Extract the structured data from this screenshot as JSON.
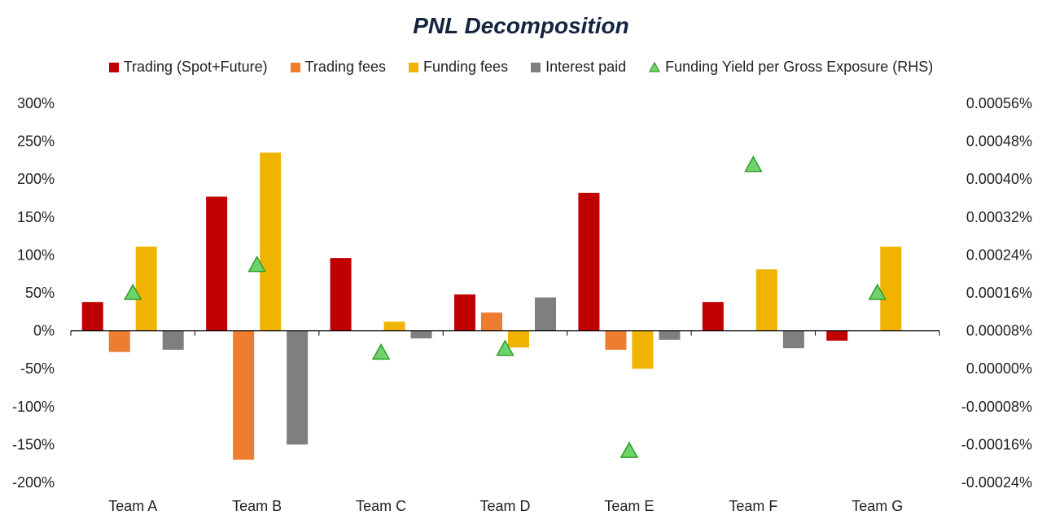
{
  "chart_data": {
    "type": "bar",
    "title": "PNL Decomposition",
    "categories": [
      "Team A",
      "Team B",
      "Team C",
      "Team D",
      "Team E",
      "Team F",
      "Team G"
    ],
    "series": [
      {
        "name": "Trading (Spot+Future)",
        "color": "#c00000",
        "axis": "left",
        "values": [
          38,
          177,
          96,
          48,
          182,
          38,
          -13
        ]
      },
      {
        "name": "Trading fees",
        "color": "#ed7d31",
        "axis": "left",
        "values": [
          -28,
          -170,
          0,
          24,
          -25,
          0,
          0
        ]
      },
      {
        "name": "Funding fees",
        "color": "#f0b400",
        "axis": "left",
        "values": [
          111,
          235,
          12,
          -22,
          -50,
          81,
          111
        ]
      },
      {
        "name": "Interest paid",
        "color": "#7f7f7f",
        "axis": "left",
        "values": [
          -25,
          -150,
          -10,
          44,
          -12,
          -23,
          0
        ]
      },
      {
        "name": "Funding Yield per Gross Exposure (RHS)",
        "color": "#6fd36b",
        "axis": "right",
        "marker": "triangle",
        "values": [
          0.00016,
          0.000219,
          3.4e-05,
          4.2e-05,
          -0.0001733,
          0.00043,
          0.00016
        ]
      }
    ],
    "y_left": {
      "ylim": [
        -200,
        300
      ],
      "ticks": [
        "300%",
        "250%",
        "200%",
        "150%",
        "100%",
        "50%",
        "0%",
        "-50%",
        "-100%",
        "-150%",
        "-200%"
      ]
    },
    "y_right": {
      "ylim": [
        -0.00024,
        0.00056
      ],
      "ticks": [
        "0.00056%",
        "0.00048%",
        "0.00040%",
        "0.00032%",
        "0.00024%",
        "0.00016%",
        "0.00008%",
        "0.00000%",
        "-0.00008%",
        "-0.00016%",
        "-0.00024%"
      ]
    },
    "grid": false,
    "legend_position": "top"
  }
}
